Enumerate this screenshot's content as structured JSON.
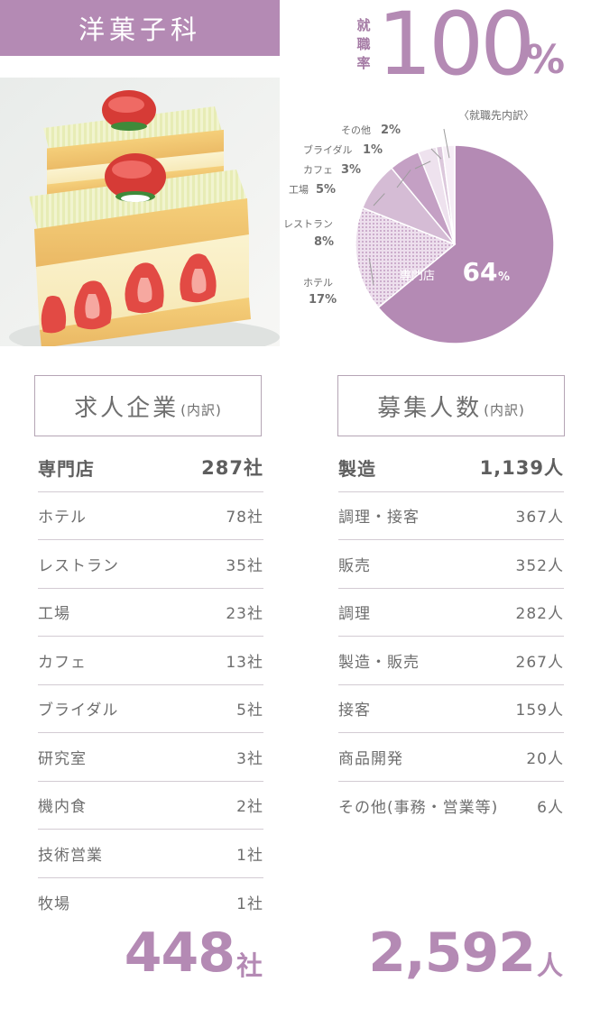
{
  "header": {
    "title": "洋菓子科"
  },
  "employment_rate": {
    "label": "就職率",
    "value": "100",
    "unit": "%"
  },
  "pie": {
    "title": "〈就職先内訳〉",
    "unit": "%",
    "colors": {
      "specialty": "#b48ab4",
      "hotel": "#e9dae9",
      "restaurant": "#d5bcd5",
      "factory": "#c4a0c4",
      "cafe": "#eee2ee",
      "bridal": "#dcc8dc",
      "other": "#f6eef6"
    },
    "slices": [
      {
        "label": "専門店",
        "value": 64
      },
      {
        "label": "ホテル",
        "value": 17
      },
      {
        "label": "レストラン",
        "value": 8
      },
      {
        "label": "工場",
        "value": 5
      },
      {
        "label": "カフェ",
        "value": 3
      },
      {
        "label": "ブライダル",
        "value": 1
      },
      {
        "label": "その他",
        "value": 2
      }
    ]
  },
  "companies": {
    "title": "求人企業",
    "subtitle": "(内訳)",
    "rows": [
      {
        "label": "専門店",
        "value": "287社"
      },
      {
        "label": "ホテル",
        "value": "78社"
      },
      {
        "label": "レストラン",
        "value": "35社"
      },
      {
        "label": "工場",
        "value": "23社"
      },
      {
        "label": "カフェ",
        "value": "13社"
      },
      {
        "label": "ブライダル",
        "value": "5社"
      },
      {
        "label": "研究室",
        "value": "3社"
      },
      {
        "label": "機内食",
        "value": "2社"
      },
      {
        "label": "技術営業",
        "value": "1社"
      },
      {
        "label": "牧場",
        "value": "1社"
      }
    ],
    "total": "448",
    "total_unit": "社"
  },
  "recruits": {
    "title": "募集人数",
    "subtitle": "(内訳)",
    "rows": [
      {
        "label": "製造",
        "value": "1,139人"
      },
      {
        "label": "調理・接客",
        "value": "367人"
      },
      {
        "label": "販売",
        "value": "352人"
      },
      {
        "label": "調理",
        "value": "282人"
      },
      {
        "label": "製造・販売",
        "value": "267人"
      },
      {
        "label": "接客",
        "value": "159人"
      },
      {
        "label": "商品開発",
        "value": "20人"
      },
      {
        "label": "その他(事務・営業等)",
        "value": "6人"
      }
    ],
    "total": "2,592",
    "total_unit": "人"
  }
}
